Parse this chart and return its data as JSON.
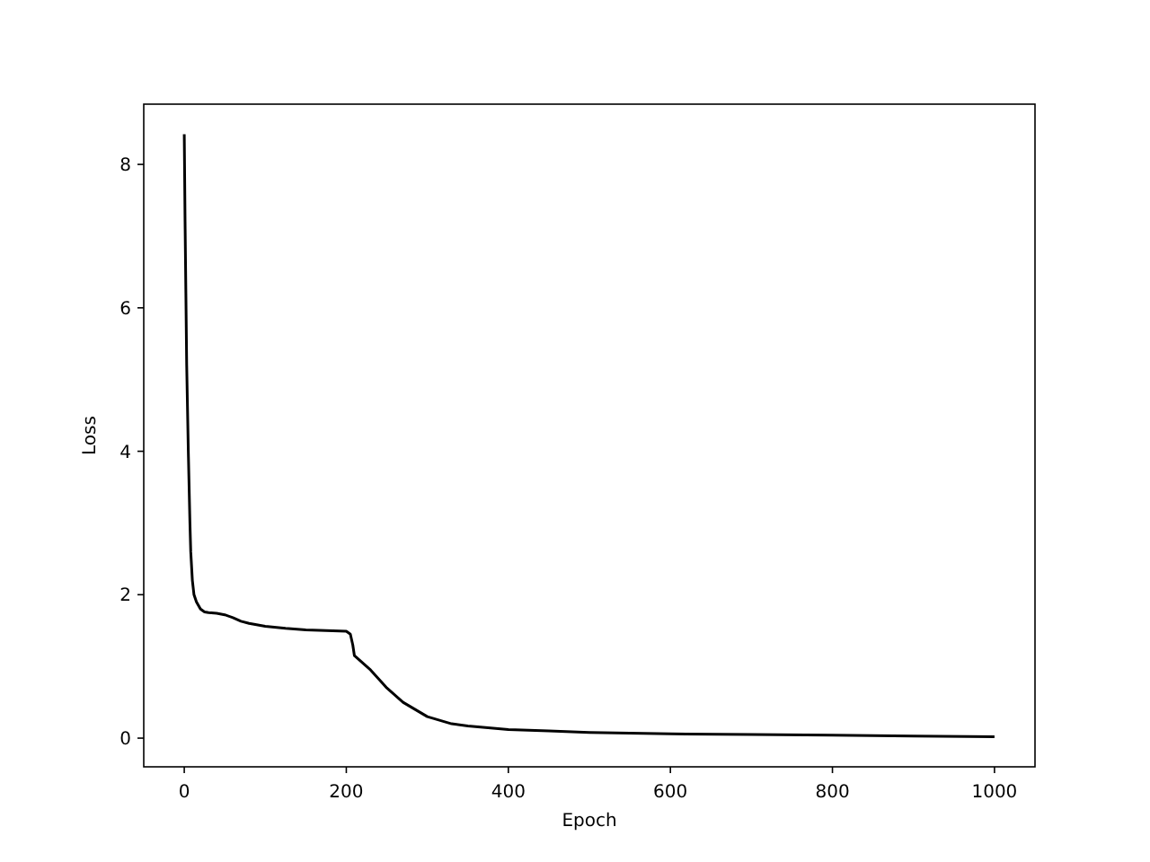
{
  "chart_data": {
    "type": "line",
    "xlabel": "Epoch",
    "ylabel": "Loss",
    "series": [
      {
        "color": "#000000",
        "x": [
          0,
          1,
          2,
          3,
          5,
          7,
          8,
          10,
          12,
          15,
          20,
          25,
          30,
          40,
          50,
          60,
          70,
          80,
          100,
          125,
          150,
          175,
          200,
          205,
          208,
          210,
          220,
          230,
          250,
          270,
          300,
          330,
          350,
          400,
          450,
          500,
          600,
          700,
          800,
          900,
          1000
        ],
        "values": [
          8.42,
          7.2,
          6.2,
          5.2,
          4.0,
          3.0,
          2.6,
          2.2,
          2.0,
          1.9,
          1.8,
          1.76,
          1.75,
          1.74,
          1.72,
          1.68,
          1.63,
          1.6,
          1.56,
          1.53,
          1.51,
          1.5,
          1.49,
          1.45,
          1.3,
          1.15,
          1.05,
          0.95,
          0.7,
          0.5,
          0.3,
          0.2,
          0.17,
          0.12,
          0.1,
          0.08,
          0.06,
          0.05,
          0.04,
          0.03,
          0.02
        ]
      }
    ],
    "xlim": [
      -50,
      1050
    ],
    "ylim": [
      -0.4,
      8.84
    ],
    "xticks": [
      0,
      200,
      400,
      600,
      800,
      1000
    ],
    "yticks": [
      0,
      2,
      4,
      6,
      8
    ],
    "grid": false,
    "line_style": "solid"
  }
}
